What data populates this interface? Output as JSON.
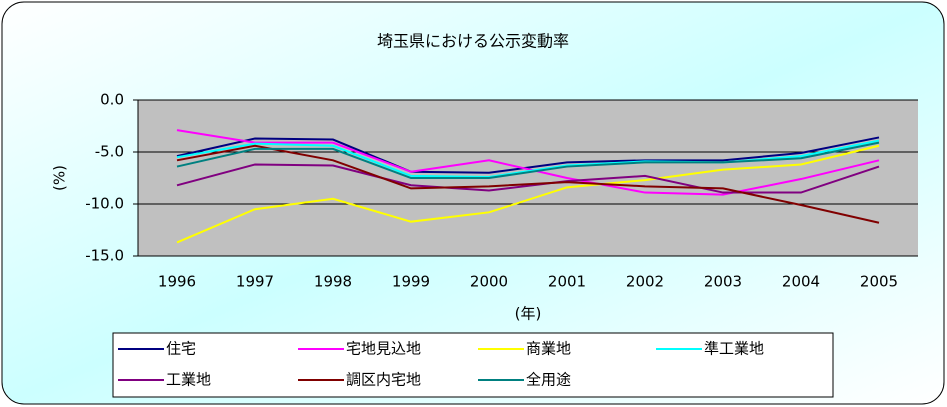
{
  "chart_data": {
    "type": "line",
    "title": "埼玉県における公示変動率",
    "y_label": "(%)",
    "x_label": "(年)",
    "categories": [
      "1996",
      "1997",
      "1998",
      "1999",
      "2000",
      "2001",
      "2002",
      "2003",
      "2004",
      "2005"
    ],
    "ylim": [
      -15,
      0
    ],
    "yticks": [
      {
        "value": 0,
        "label": "0.0"
      },
      {
        "value": -5,
        "label": "-5.0"
      },
      {
        "value": -10,
        "label": "-10.0"
      },
      {
        "value": -15,
        "label": "-15.0"
      }
    ],
    "grid": true,
    "series": [
      {
        "name": "住宅",
        "color": "#000080",
        "values": [
          -5.4,
          -3.7,
          -3.8,
          -6.9,
          -7.0,
          -6.0,
          -5.8,
          -5.8,
          -5.1,
          -3.6
        ]
      },
      {
        "name": "宅地見込地",
        "color": "#ff00ff",
        "values": [
          -2.9,
          -4.1,
          -4.1,
          -6.9,
          -5.8,
          -7.5,
          -8.9,
          -9.1,
          -7.6,
          -5.8
        ]
      },
      {
        "name": "商業地",
        "color": "#ffff00",
        "values": [
          -13.7,
          -10.5,
          -9.5,
          -11.7,
          -10.8,
          -8.4,
          -7.7,
          -6.7,
          -6.2,
          -4.4
        ]
      },
      {
        "name": "準工業地",
        "color": "#00ffff",
        "values": [
          -5.5,
          -4.2,
          -4.4,
          -7.3,
          -7.4,
          -6.3,
          -5.9,
          -6.0,
          -5.4,
          -3.9
        ]
      },
      {
        "name": "工業地",
        "color": "#800080",
        "values": [
          -8.2,
          -6.2,
          -6.3,
          -8.2,
          -8.7,
          -7.8,
          -7.3,
          -8.9,
          -8.9,
          -6.4
        ]
      },
      {
        "name": "調区内宅地",
        "color": "#800000",
        "values": [
          -5.8,
          -4.4,
          -5.8,
          -8.5,
          -8.3,
          -7.9,
          -8.3,
          -8.5,
          -10.1,
          -11.8
        ]
      },
      {
        "name": "全用途",
        "color": "#008080",
        "values": [
          -6.4,
          -4.7,
          -4.7,
          -7.5,
          -7.5,
          -6.4,
          -6.0,
          -6.0,
          -5.6,
          -4.1
        ]
      }
    ]
  }
}
